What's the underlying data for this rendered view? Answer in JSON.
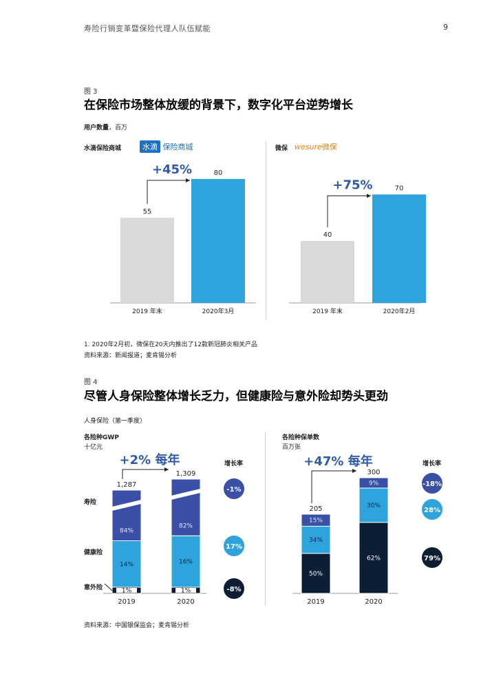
{
  "header": {
    "running_title": "寿险行销变革暨保险代理人队伍赋能",
    "page_number": "9"
  },
  "figure3": {
    "label": "图 3",
    "title": "在保险市场整体放缓的背景下，数字化平台逆势增长",
    "unit_label": "用户数量",
    "unit": "，百万",
    "footnote": "1. 2020年2月初，微保在20天内推出了12款新冠肺炎相关产品",
    "source": "资料来源：新闻报道；麦肯锡分析",
    "panels": [
      {
        "name": "水滴保险商城",
        "logo_text_1": "水滴",
        "logo_text_2": "保险商城",
        "growth": "+45%",
        "chart_data": {
          "type": "bar",
          "categories": [
            "2019 年末",
            "2020年3月"
          ],
          "values": [
            55,
            80
          ]
        }
      },
      {
        "name": "微保",
        "logo_text_1": "wesure",
        "logo_text_2": "微保",
        "growth": "+75%",
        "chart_data": {
          "type": "bar",
          "categories": [
            "2019 年末",
            "2020年2月"
          ],
          "values": [
            40,
            70
          ]
        }
      }
    ]
  },
  "figure4": {
    "label": "图 4",
    "title": "尽管人身保险整体增长乏力，但健康险与意外险却势头更劲",
    "subtitle": "人身保险（第一季度）",
    "growth_header": "增长率",
    "source": "资料来源：中国银保监会；麦肯锡分析",
    "segment_labels": [
      "寿险",
      "健康险",
      "意外险"
    ],
    "colors": {
      "life": "#3a4fa6",
      "health": "#2ea3dc",
      "accident": "#0b1e33",
      "grey": "#d9d9d9"
    },
    "panels": [
      {
        "title": "各险种GWP",
        "unit": "十亿元",
        "growth": "+2% 每年",
        "chart_data": {
          "type": "bar",
          "categories": [
            "2019",
            "2020"
          ],
          "totals": [
            1287,
            1309
          ],
          "totals_text": [
            "1,287",
            "1,309"
          ],
          "series": [
            {
              "name": "寿险",
              "percent": [
                84,
                82
              ]
            },
            {
              "name": "健康险",
              "percent": [
                14,
                16
              ]
            },
            {
              "name": "意外险",
              "percent": [
                1,
                1
              ]
            }
          ]
        },
        "growth_rates": [
          "-1%",
          "17%",
          "-8%"
        ]
      },
      {
        "title": "各险种保单数",
        "unit": "百万张",
        "growth": "+47% 每年",
        "chart_data": {
          "type": "bar",
          "categories": [
            "2019",
            "2020"
          ],
          "totals": [
            205,
            300
          ],
          "totals_text": [
            "205",
            "300"
          ],
          "series": [
            {
              "name": "寿险",
              "percent": [
                15,
                9
              ]
            },
            {
              "name": "健康险",
              "percent": [
                34,
                30
              ]
            },
            {
              "name": "意外险",
              "percent": [
                50,
                62
              ]
            }
          ]
        },
        "growth_rates": [
          "-18%",
          "28%",
          "79%"
        ]
      }
    ]
  }
}
